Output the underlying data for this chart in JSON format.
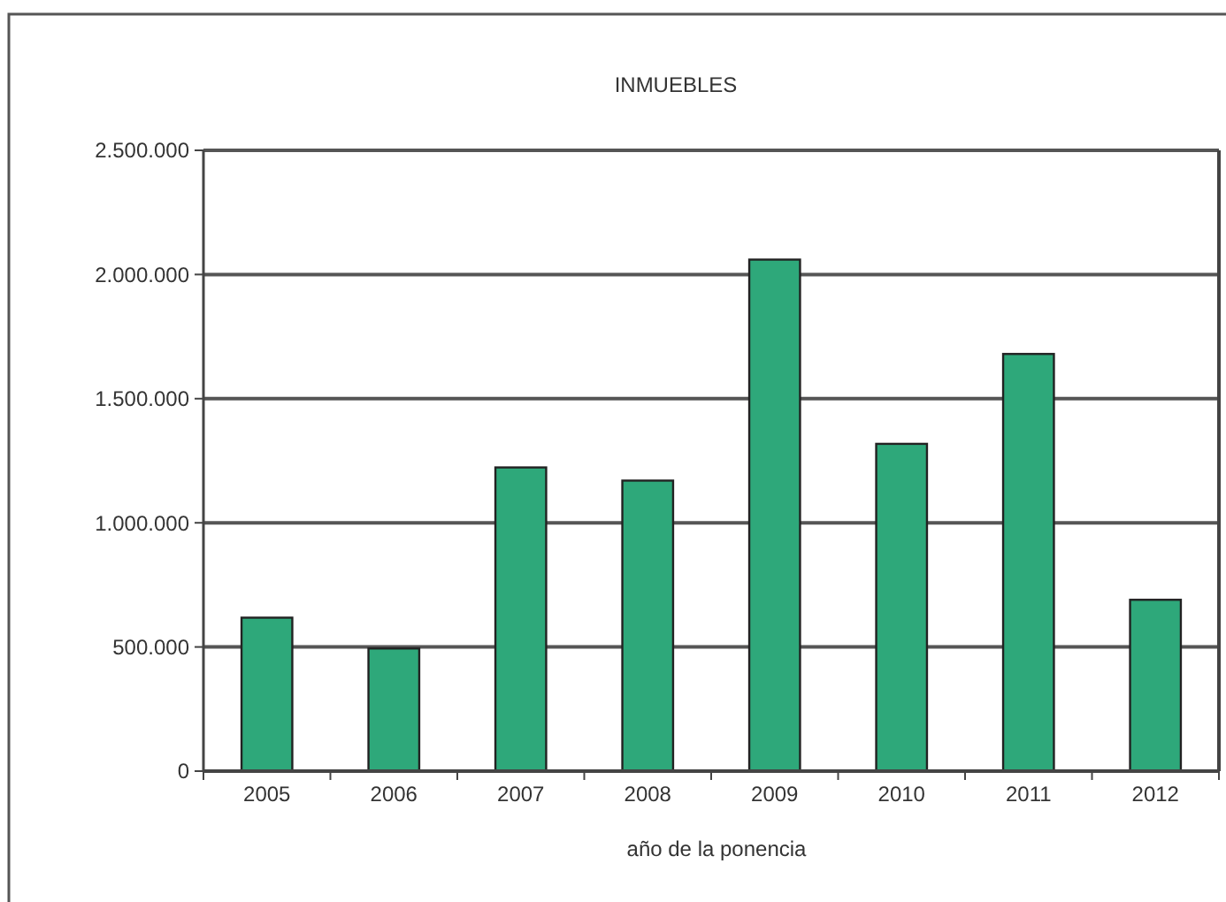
{
  "chart_data": {
    "type": "bar",
    "title": "INMUEBLES",
    "xlabel": "año de la ponencia",
    "categories": [
      "2005",
      "2006",
      "2007",
      "2008",
      "2009",
      "2010",
      "2011",
      "2012"
    ],
    "values": [
      618000,
      494000,
      1223000,
      1170000,
      2060000,
      1318000,
      1680000,
      690000
    ],
    "color": "#2ea87a",
    "ylim": [
      0,
      2500000
    ],
    "yticks": [
      0,
      {
        "value": 500000,
        "label": "500.000"
      },
      {
        "value": 1000000,
        "label": "1.000.000"
      },
      {
        "value": 1500000,
        "label": "1.500.000"
      },
      {
        "value": 2000000,
        "label": "2.000.000"
      },
      {
        "value": 2500000,
        "label": "2.500.000"
      }
    ],
    "grid": "y"
  }
}
